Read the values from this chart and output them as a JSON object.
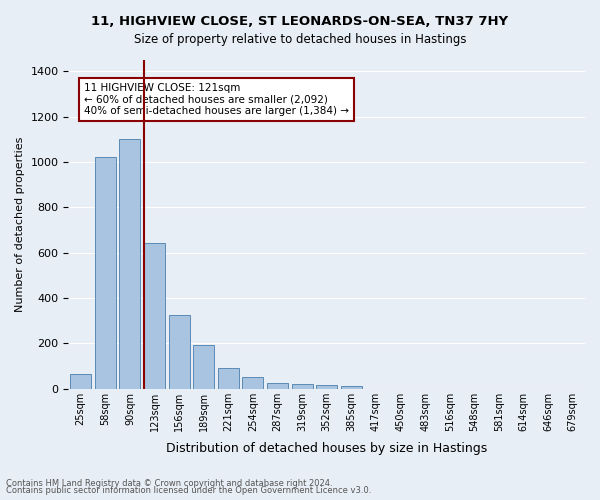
{
  "title1": "11, HIGHVIEW CLOSE, ST LEONARDS-ON-SEA, TN37 7HY",
  "title2": "Size of property relative to detached houses in Hastings",
  "xlabel": "Distribution of detached houses by size in Hastings",
  "ylabel": "Number of detached properties",
  "footnote1": "Contains HM Land Registry data © Crown copyright and database right 2024.",
  "footnote2": "Contains public sector information licensed under the Open Government Licence v3.0.",
  "annotation_line1": "11 HIGHVIEW CLOSE: 121sqm",
  "annotation_line2": "← 60% of detached houses are smaller (2,092)",
  "annotation_line3": "40% of semi-detached houses are larger (1,384) →",
  "bar_color": "#a8c4e0",
  "bar_edge_color": "#5a8ab5",
  "bg_color": "#e8eef5",
  "grid_color": "#ffffff",
  "vline_color": "#8b0000",
  "annotation_box_edge": "#8b0000",
  "categories": [
    "25sqm",
    "58sqm",
    "90sqm",
    "123sqm",
    "156sqm",
    "189sqm",
    "221sqm",
    "254sqm",
    "287sqm",
    "319sqm",
    "352sqm",
    "385sqm",
    "417sqm",
    "450sqm",
    "483sqm",
    "516sqm",
    "548sqm",
    "581sqm",
    "614sqm",
    "646sqm",
    "679sqm"
  ],
  "values": [
    65,
    1020,
    1100,
    645,
    325,
    195,
    90,
    50,
    25,
    20,
    15,
    12,
    0,
    0,
    0,
    0,
    0,
    0,
    0,
    0,
    0
  ],
  "vline_x": 2.575,
  "ylim": [
    0,
    1450
  ],
  "yticks": [
    0,
    200,
    400,
    600,
    800,
    1000,
    1200,
    1400
  ]
}
